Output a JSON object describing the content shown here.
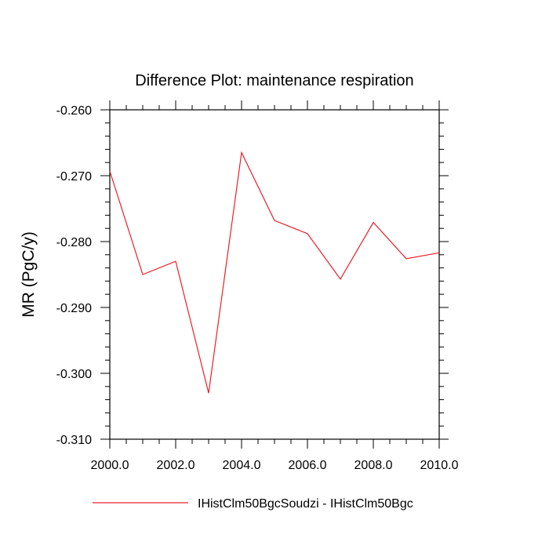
{
  "chart_data": {
    "type": "line",
    "title": "Difference Plot: maintenance respiration",
    "xlabel": "",
    "ylabel": "MR  (PgC/y)",
    "xlim": [
      2000.0,
      2010.0
    ],
    "ylim": [
      -0.31,
      -0.26
    ],
    "x_ticks": [
      2000,
      2002,
      2004,
      2006,
      2008,
      2010
    ],
    "x_tick_labels": [
      "2000.0",
      "2002.0",
      "2004.0",
      "2006.0",
      "2008.0",
      "2010.0"
    ],
    "y_ticks": [
      -0.26,
      -0.27,
      -0.28,
      -0.29,
      -0.3,
      -0.31
    ],
    "y_tick_labels": [
      "-0.260",
      "-0.270",
      "-0.280",
      "-0.290",
      "-0.300",
      "-0.310"
    ],
    "grid": false,
    "legend_position": "bottom",
    "series": [
      {
        "name": "IHistClm50BgcSoudzi - IHistClm50Bgc",
        "color": "#e8202a",
        "x": [
          2000,
          2001,
          2002,
          2003,
          2004,
          2005,
          2006,
          2007,
          2008,
          2009,
          2010
        ],
        "y": [
          -0.2693,
          -0.285,
          -0.283,
          -0.303,
          -0.2665,
          -0.2768,
          -0.2788,
          -0.2857,
          -0.2771,
          -0.2826,
          -0.2817
        ]
      }
    ]
  }
}
